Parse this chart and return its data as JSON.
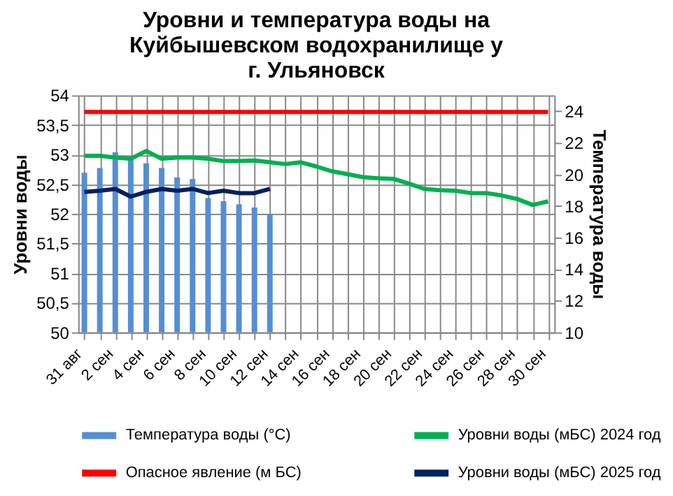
{
  "chart_data": {
    "type": "line",
    "title": "Уровни  и температура  воды на\nКуйбышевском водохранилище у\nг. Ульяновск",
    "ylabel": "Уровни воды",
    "y2label": "Температура воды",
    "categories": [
      "31 авг",
      null,
      "2 сен",
      null,
      "4 сен",
      null,
      "6 сен",
      null,
      "8 сен",
      null,
      "10 сен",
      null,
      "12 сен",
      null,
      "14 сен",
      null,
      "16 сен",
      null,
      "18 сен",
      null,
      "20 сен",
      null,
      "22 сен",
      null,
      "24 сен",
      null,
      "26 сен",
      null,
      "28 сен",
      null,
      "30 сен"
    ],
    "series": [
      {
        "name": "Температура воды (°C)",
        "type": "bar",
        "axis": "y2",
        "color": "#558ed5",
        "values": [
          20.1,
          20.4,
          21.4,
          20.9,
          20.7,
          20.4,
          19.8,
          19.7,
          18.5,
          18.3,
          18.1,
          17.9,
          17.5,
          null,
          null,
          null,
          null,
          null,
          null,
          null,
          null,
          null,
          null,
          null,
          null,
          null,
          null,
          null,
          null,
          null,
          null
        ]
      },
      {
        "name": "Уровни воды (мБС) 2024 год",
        "axis": "y",
        "color": "#00b050",
        "values": [
          52.98,
          52.98,
          52.95,
          52.93,
          53.06,
          52.93,
          52.95,
          52.95,
          52.93,
          52.89,
          52.89,
          52.9,
          52.87,
          52.84,
          52.87,
          52.8,
          52.72,
          52.67,
          52.62,
          52.6,
          52.59,
          52.51,
          52.42,
          52.4,
          52.39,
          52.35,
          52.35,
          52.31,
          52.25,
          52.15,
          52.21
        ]
      },
      {
        "name": "Опасное явление    (м БС)",
        "axis": "y",
        "color": "#ff0000",
        "values": [
          53.72,
          53.72,
          53.72,
          53.72,
          53.72,
          53.72,
          53.72,
          53.72,
          53.72,
          53.72,
          53.72,
          53.72,
          53.72,
          53.72,
          53.72,
          53.72,
          53.72,
          53.72,
          53.72,
          53.72,
          53.72,
          53.72,
          53.72,
          53.72,
          53.72,
          53.72,
          53.72,
          53.72,
          53.72,
          53.72,
          53.72
        ]
      },
      {
        "name": "Уровни воды (мБС) 2025 год",
        "axis": "y",
        "color": "#002060",
        "values": [
          52.37,
          52.39,
          52.42,
          52.29,
          52.37,
          52.42,
          52.39,
          52.42,
          52.35,
          52.39,
          52.35,
          52.35,
          52.42,
          null,
          null,
          null,
          null,
          null,
          null,
          null,
          null,
          null,
          null,
          null,
          null,
          null,
          null,
          null,
          null,
          null,
          null
        ]
      }
    ],
    "ylim": [
      50,
      54
    ],
    "yticks": [
      50,
      {
        "value": 50.5,
        "label": "50,5"
      },
      51,
      {
        "value": 51.5,
        "label": "51,5"
      },
      52,
      {
        "value": 52.5,
        "label": "52,5"
      },
      53,
      {
        "value": 53.5,
        "label": "53,5"
      },
      54
    ],
    "y2lim": [
      10,
      25
    ],
    "y2ticks": [
      10,
      12,
      14,
      16,
      18,
      20,
      22,
      24
    ],
    "grid": true,
    "legend": "bottom",
    "line_style": "solid",
    "marker": "none"
  }
}
